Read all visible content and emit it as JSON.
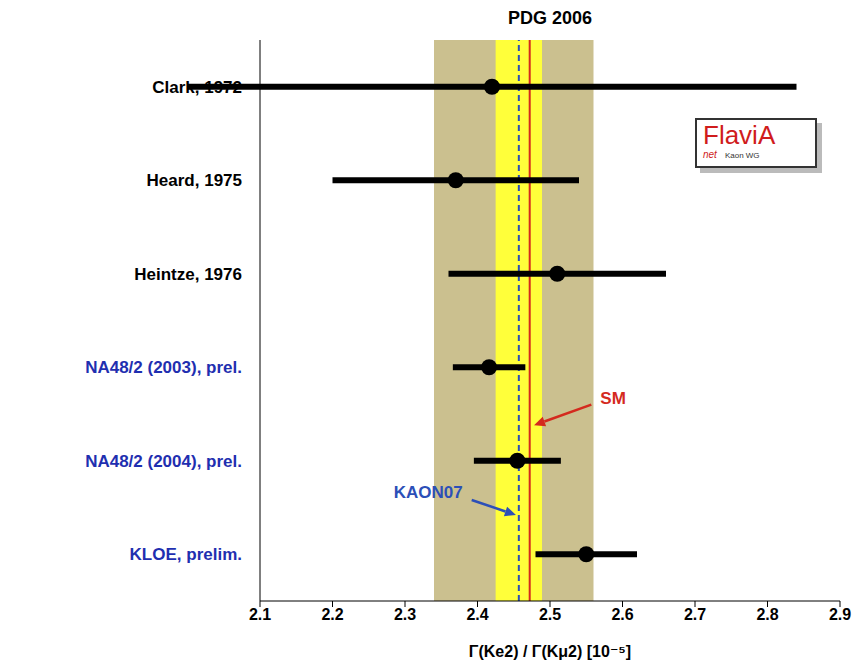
{
  "chart_data": {
    "type": "forest",
    "title": "PDG 2006",
    "x_label": "Γ(Ke2) / Γ(Kμ2)  [10⁻⁵]",
    "categories": [
      "Clark, 1972",
      "Heard, 1975",
      "Heintze, 1976",
      "NA48/2 (2003), prel.",
      "NA48/2 (2004), prel.",
      "KLOE, prelim."
    ],
    "values": [
      2.42,
      2.37,
      2.51,
      2.416,
      2.455,
      2.55
    ],
    "errors": [
      0.42,
      0.17,
      0.15,
      0.05,
      0.06,
      0.07
    ],
    "color": "#000000",
    "marker": "circle",
    "xlim": [
      2.1,
      2.9
    ],
    "xticks": [
      2.1,
      2.2,
      2.3,
      2.4,
      2.5,
      2.6,
      2.7,
      2.8,
      2.9
    ],
    "bands": [
      {
        "from": 2.34,
        "to": 2.56,
        "color": "#cbc08f"
      },
      {
        "from": 2.425,
        "to": 2.489,
        "color": "#ffff3a"
      }
    ],
    "lines": [
      {
        "value": 2.457,
        "line_style": "dashed",
        "color": "#2c4fb8",
        "label": "KAON07"
      },
      {
        "value": 2.472,
        "line_style": "solid",
        "color": "#d42a1e",
        "label": "SM"
      }
    ],
    "logo": {
      "text": "FlaviA",
      "subtext": "net",
      "caption": "Kaon WG"
    },
    "grid": false,
    "legend": false
  }
}
